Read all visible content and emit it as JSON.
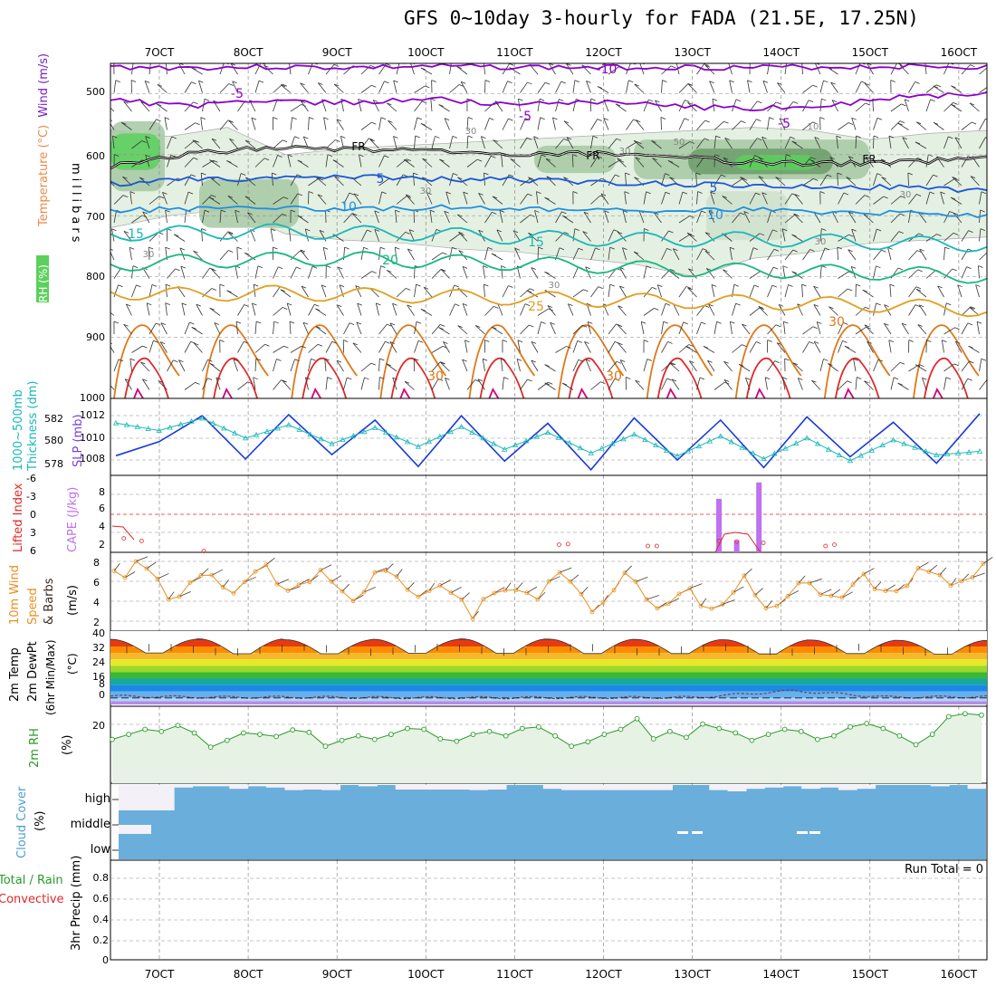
{
  "title": "GFS 0~10day 3-hourly for FADA (21.5E, 17.25N)",
  "colors": {
    "purple": "#8b00c8",
    "black": "#000000",
    "blue": "#1a55d8",
    "lightblue": "#1e90e0",
    "teal": "#1ab8b8",
    "green": "#18b880",
    "orange": "#e0a020",
    "darkorange": "#e07818",
    "red": "#e02828",
    "magenta": "#d0007a",
    "rh_light": "#e4f0e2",
    "rh_mid": "#a6c8a2",
    "rh_dark": "#6c9c6a",
    "rh_green": "#5cd05c",
    "cape": "#c070f0",
    "wind10": "#e89020",
    "rh2m": "#2a9a2a",
    "cloud": "#6aaedb",
    "cloud_gap": "#f4f0f8",
    "precip_axis": "#000000"
  },
  "chart_data": [
    {
      "type": "line",
      "panel": "upper-air cross section",
      "ylabel_left": [
        "Wind (m/s)",
        "Temperature (°C)",
        "RH (%)"
      ],
      "ylabel_right": "millibars",
      "x_ticks": [
        "7OCT",
        "8OCT",
        "9OCT",
        "10OCT",
        "11OCT",
        "12OCT",
        "13OCT",
        "14OCT",
        "15OCT",
        "16OCT"
      ],
      "y_ticks": [
        500,
        600,
        700,
        800,
        900,
        1000
      ],
      "ylim": [
        1000,
        450
      ],
      "isotherm_labels": [
        "-10",
        "-5",
        "-5",
        "-5",
        "FR",
        "FR",
        "FR",
        "5",
        "5",
        "10",
        "10",
        "15",
        "15",
        "20",
        "25",
        "30",
        "30",
        "30"
      ],
      "rh_labels": [
        "30",
        "30",
        "30",
        "30",
        "30",
        "30",
        "30",
        "50",
        "10"
      ],
      "series": [
        {
          "name": "-10",
          "color": "#8b00c8",
          "values": [
            456,
            457,
            456,
            457,
            455,
            456,
            457,
            456,
            457,
            456,
            455,
            456
          ]
        },
        {
          "name": "-5",
          "color": "#8b00c8",
          "values": [
            510,
            520,
            512,
            515,
            508,
            518,
            512,
            520,
            525,
            518,
            505,
            500
          ]
        },
        {
          "name": "0",
          "color": "#000000",
          "values": [
            620,
            598,
            588,
            590,
            595,
            600,
            598,
            605,
            612,
            615,
            612,
            605
          ]
        },
        {
          "name": "5",
          "color": "#1a55d8",
          "values": [
            648,
            640,
            640,
            636,
            640,
            640,
            645,
            648,
            650,
            655,
            652,
            660
          ]
        },
        {
          "name": "10",
          "color": "#1e90e0",
          "values": [
            692,
            688,
            685,
            690,
            686,
            688,
            690,
            692,
            690,
            695,
            696,
            700
          ]
        },
        {
          "name": "15",
          "color": "#1ab8b8",
          "values": [
            730,
            728,
            725,
            728,
            730,
            735,
            738,
            740,
            738,
            742,
            745,
            748
          ]
        },
        {
          "name": "20",
          "color": "#18b880",
          "values": [
            780,
            775,
            772,
            770,
            775,
            778,
            782,
            788,
            790,
            792,
            795,
            800
          ]
        },
        {
          "name": "25",
          "color": "#e0a020",
          "values": [
            825,
            830,
            826,
            830,
            832,
            835,
            838,
            840,
            842,
            845,
            848,
            855
          ]
        }
      ]
    },
    {
      "type": "line",
      "panel": "SLP and thickness",
      "ylabel_left": [
        "1000~500mb",
        "Thickness (dm)"
      ],
      "ylabel_right": "SLP (mb)",
      "y_ticks_left": [
        "582",
        "580",
        "578"
      ],
      "y_ticks_right": [
        "1012",
        "1010",
        "1008"
      ],
      "series": [
        {
          "name": "SLP",
          "color": "#1a3ad8",
          "values": [
            1008.5,
            1009.8,
            1012.2,
            1008.2,
            1012.3,
            1008.6,
            1011.8,
            1007.5,
            1012.2,
            1008.0,
            1011.5,
            1007.2,
            1012.0,
            1008.1,
            1011.8,
            1007.4,
            1012.1,
            1008.4,
            1011.6,
            1007.8,
            1012.4
          ]
        },
        {
          "name": "Thickness",
          "color": "#1ab8b8",
          "values": [
            582.0,
            581.2,
            582.5,
            580.4,
            581.8,
            579.8,
            581.5,
            579.5,
            581.6,
            579.2,
            581.0,
            578.8,
            580.8,
            578.5,
            580.6,
            578.2,
            580.4,
            578.0,
            580.2,
            578.6,
            579.0
          ]
        }
      ]
    },
    {
      "type": "bar",
      "panel": "CAPE and Lifted Index",
      "ylabel_left": "Lifted Index",
      "ylabel_right": "CAPE (J/kg)",
      "y_ticks_left": [
        "-6",
        "-3",
        "0",
        "3",
        "6"
      ],
      "y_ticks_right": [
        "8",
        "6",
        "4",
        "2"
      ],
      "cape": {
        "color": "#c070f0",
        "x_days": [
          13.3,
          13.5,
          13.75
        ],
        "values": [
          7.2,
          1.6,
          9.4
        ]
      },
      "lifted_index": {
        "color": "#e02828",
        "x_days": [
          6.6,
          6.8,
          7.5,
          11.5,
          11.6,
          12.5,
          12.6,
          13.3,
          13.5,
          13.8,
          14.5,
          14.6
        ],
        "values": [
          3.8,
          4.2,
          5.8,
          4.8,
          4.7,
          5.0,
          5.0,
          4.2,
          4.3,
          4.5,
          5.0,
          4.8
        ]
      }
    },
    {
      "type": "line",
      "panel": "10m wind",
      "ylabel": "10m Wind Speed & Barbs (m/s)",
      "y_ticks": [
        "8",
        "6",
        "4",
        "2"
      ],
      "series": [
        {
          "name": "Speed",
          "color": "#e89020",
          "values": [
            6.5,
            7.8,
            4.0,
            7.5,
            5.2,
            7.6,
            4.6,
            6.8,
            4.1,
            7.7,
            3.8,
            6.2,
            2.5,
            5.8,
            4.5,
            6.5,
            3.2,
            7.0,
            3.4,
            5.5,
            3.0,
            6.0,
            2.8,
            7.2,
            3.6,
            6.8,
            4.2,
            7.4,
            5.4,
            7.2
          ]
        }
      ]
    },
    {
      "type": "area",
      "panel": "2m temperature",
      "ylabel": "2m Temp / 2m DewPt / (6hr Min/Max) (°C)",
      "y_ticks": [
        "40",
        "32",
        "24",
        "16",
        "8",
        "0"
      ],
      "ylim": [
        -4,
        41
      ],
      "temp_bands": [
        {
          "upper": 40,
          "color": "#a80000"
        },
        {
          "upper": 36,
          "color": "#e83a10"
        },
        {
          "upper": 32,
          "color": "#ff8c00"
        },
        {
          "upper": 28,
          "color": "#f5b82a"
        },
        {
          "upper": 24,
          "color": "#e8e82a"
        },
        {
          "upper": 20,
          "color": "#9ad82a"
        },
        {
          "upper": 16,
          "color": "#3ab83a"
        },
        {
          "upper": 12,
          "color": "#18a8a0"
        },
        {
          "upper": 8,
          "color": "#1a88e8"
        },
        {
          "upper": 4,
          "color": "#66b0f0"
        },
        {
          "upper": 0,
          "color": "#b2d4f8"
        },
        {
          "upper": -2,
          "color": "#b88ae8"
        }
      ],
      "temp_max": [
        36.5,
        36.8,
        36.2,
        36.5,
        36.8,
        36.6,
        36.4,
        36.2,
        36.0,
        35.8
      ],
      "temp_min": [
        28.0,
        27.5,
        27.5,
        27.8,
        27.8,
        27.6,
        27.6,
        27.4,
        27.6,
        27.2
      ],
      "dewpoint": [
        1.2,
        0.5,
        0.5,
        0.2,
        0.2,
        0.3,
        0.4,
        4.5,
        0.5,
        0.8
      ]
    },
    {
      "type": "line",
      "panel": "2m RH",
      "ylabel": "2m RH (%)",
      "y_ticks": [
        "20"
      ],
      "series": [
        {
          "name": "2m RH",
          "color": "#2a9a2a",
          "values": [
            14.8,
            16.5,
            18.2,
            17.5,
            19.5,
            17.0,
            12.2,
            14.5,
            17.0,
            16.5,
            15.8,
            18.0,
            17.2,
            12.5,
            14.5,
            16.0,
            14.8,
            16.5,
            18.5,
            18.2,
            15.0,
            14.2,
            16.5,
            17.5,
            16.0,
            18.5,
            19.0,
            16.0,
            12.5,
            14.0,
            16.5,
            18.2,
            21.8,
            15.0,
            17.5,
            15.5,
            20.0,
            18.5,
            17.0,
            14.5,
            16.5,
            18.2,
            17.5,
            14.8,
            16.0,
            19.0,
            20.2,
            18.5,
            16.0,
            13.0,
            16.5,
            22.5,
            23.5,
            23.0
          ]
        }
      ]
    },
    {
      "type": "bar",
      "panel": "Cloud Cover",
      "ylabel": "Cloud Cover (%)",
      "layer_labels": [
        "high",
        "middle",
        "low"
      ],
      "high": [
        0,
        0,
        0,
        90,
        95,
        95,
        85,
        95,
        90,
        80,
        82,
        80,
        100,
        95,
        100,
        82,
        82,
        82,
        82,
        80,
        82,
        100,
        100,
        85,
        80,
        80,
        80,
        80,
        80,
        80,
        100,
        100,
        80,
        75,
        85,
        90,
        95,
        85,
        90,
        80,
        85,
        100,
        100,
        100,
        95,
        100,
        85
      ],
      "middle": [
        80,
        0,
        0,
        0,
        0,
        0,
        0,
        0,
        0,
        0,
        0,
        0,
        0,
        0,
        0,
        0,
        0,
        0,
        0,
        0,
        0,
        0,
        0,
        0,
        0,
        0,
        0,
        0,
        0,
        0,
        0,
        0,
        0,
        0,
        0,
        0,
        0,
        0,
        0,
        0,
        0,
        0,
        0,
        0,
        0,
        0,
        0
      ]
    },
    {
      "type": "bar",
      "panel": "Precipitation",
      "ylabel": "3hr Precip (mm)",
      "series_labels": [
        "Total / Rain",
        "Convective"
      ],
      "y_ticks": [
        "0.8",
        "0.6",
        "0.4",
        "0.2",
        "0"
      ],
      "run_total": "Run Total = 0",
      "values": []
    }
  ]
}
